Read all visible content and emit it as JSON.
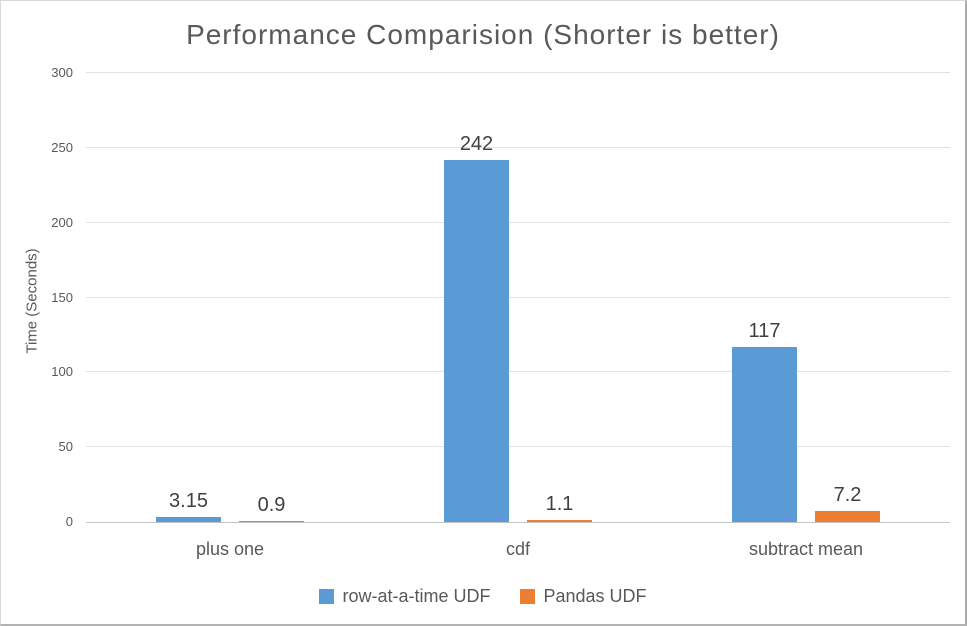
{
  "chart_data": {
    "type": "bar",
    "title": "Performance Comparision (Shorter is better)",
    "ylabel": "Time (Seconds)",
    "xlabel": "",
    "categories": [
      "plus one",
      "cdf",
      "subtract mean"
    ],
    "series": [
      {
        "name": "row-at-a-time UDF",
        "color": "#5B9BD5",
        "values": [
          3.15,
          242,
          117
        ],
        "data_labels": [
          "3.15",
          "242",
          "117"
        ]
      },
      {
        "name": "Pandas UDF",
        "color": "#ED7D31",
        "values": [
          0.9,
          1.1,
          7.2
        ],
        "data_labels": [
          "0.9",
          "1.1",
          "7.2"
        ]
      }
    ],
    "ylim": [
      0,
      300
    ],
    "yticks": [
      0,
      50,
      100,
      150,
      200,
      250,
      300
    ],
    "grid": true,
    "legend_position": "bottom",
    "colors": {
      "title_text": "#595959",
      "axis_text": "#595959",
      "data_label_text": "#404040",
      "gridline": "#E2E2E2",
      "axis_line": "#C4C4C4",
      "frame_border": "#ABABAB",
      "background": "#FFFFFF"
    }
  }
}
